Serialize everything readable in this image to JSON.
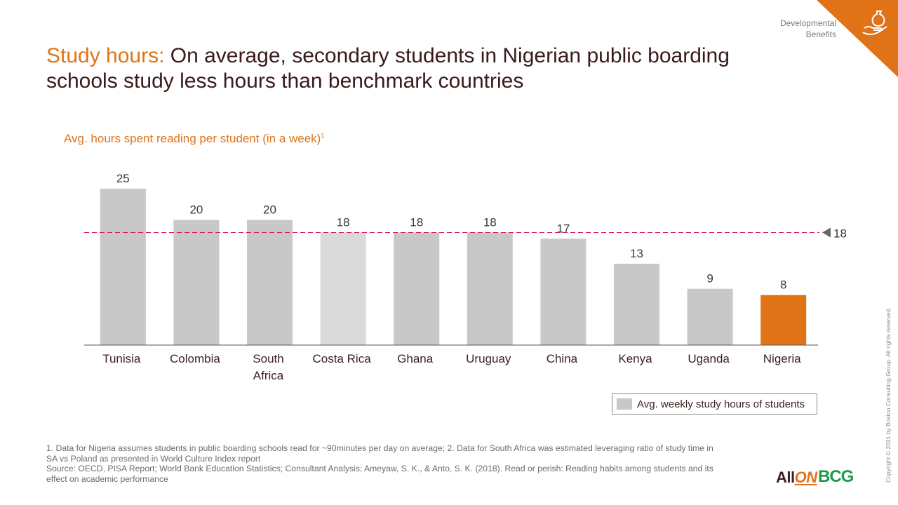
{
  "header": {
    "section_line1": "Developmental",
    "section_line2": "Benefits",
    "title_accent": "Study hours:",
    "title_rest": " On average, secondary students in Nigerian public boarding schools study less hours than benchmark countries",
    "subtitle": "Avg. hours spent reading per student (in a week)",
    "subtitle_sup": "1"
  },
  "chart_data": {
    "type": "bar",
    "categories": [
      [
        "Tunisia"
      ],
      [
        "Colombia"
      ],
      [
        "South",
        "Africa"
      ],
      [
        "Costa Rica"
      ],
      [
        "Ghana"
      ],
      [
        "Uruguay"
      ],
      [
        "China"
      ],
      [
        "Kenya"
      ],
      [
        "Uganda"
      ],
      [
        "Nigeria"
      ]
    ],
    "values": [
      25,
      20,
      20,
      18,
      18,
      18,
      17,
      13,
      9,
      8
    ],
    "bar_colors": [
      "#c8c8c8",
      "#c8c8c8",
      "#c8c8c8",
      "#dadada",
      "#c8c8c8",
      "#c8c8c8",
      "#c8c8c8",
      "#c8c8c8",
      "#c8c8c8",
      "#e07318"
    ],
    "reference_line": {
      "value": 18,
      "label": "18",
      "color": "#d6204e"
    },
    "legend": "Avg. weekly study hours of students",
    "ylim": [
      0,
      25
    ]
  },
  "footnotes": {
    "line1": "1. Data for Nigeria assumes students in public boarding schools read for ~90minutes per day on average; 2. Data for South Africa was estimated leveraging ratio of study time in SA vs Poland as presented in World Culture Index report",
    "line2": "Source: OECD, PISA Report; World Bank Education Statistics; Consultant Analysis; Ameyaw, S. K., & Anto, S. K. (2018). Read or perish: Reading habits among students and its effect on academic performance"
  },
  "copyright": "Copyright © 2021 by Boston Consulting Group. All rights reserved.",
  "logos": {
    "allon_all": "All",
    "allon_on": "ON",
    "bcg": "BCG"
  }
}
